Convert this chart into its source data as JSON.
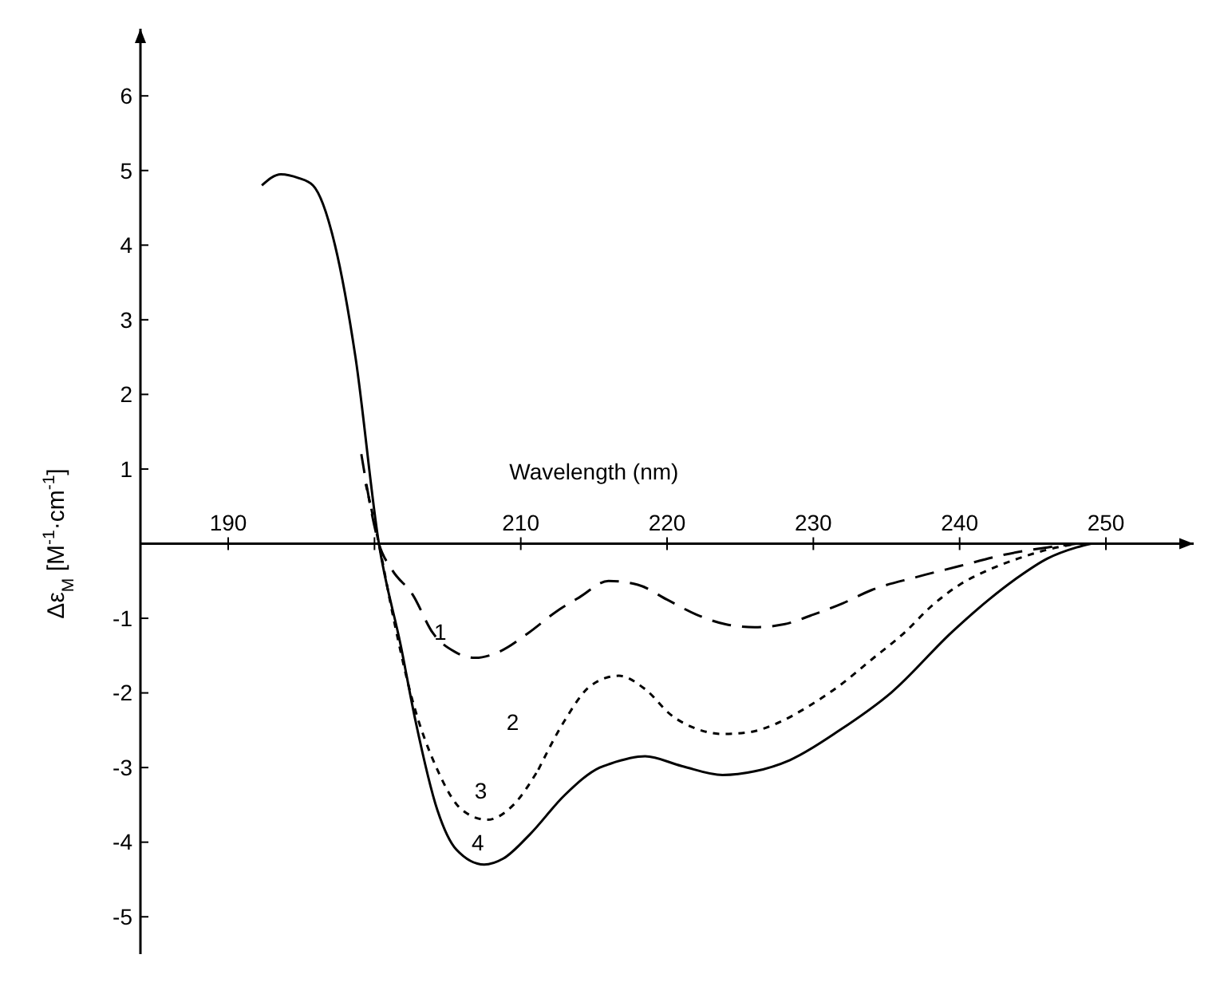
{
  "chart_data": {
    "type": "line",
    "xlabel": "Wavelength (nm)",
    "ylabel": "Δε$_{M}$ [M$^{-1}$·cm$^{-1}$]",
    "xlim": [
      184,
      256
    ],
    "ylim": [
      -5.5,
      6.9
    ],
    "xticks": [
      190,
      {
        "value": 200,
        "label": null
      },
      210,
      220,
      230,
      240,
      250
    ],
    "yticks": [
      -5,
      -4,
      -3,
      -2,
      -1,
      1,
      2,
      3,
      4,
      5,
      6
    ],
    "grid": false,
    "marker": "none",
    "series": [
      {
        "name": "1",
        "color": "#000000",
        "line_style": "dashed",
        "x": [
          199.1,
          200.3,
          201.2,
          202.6,
          204,
          205.5,
          206.9,
          208.5,
          210.5,
          212.5,
          214,
          216,
          218,
          220,
          222,
          224,
          226,
          228,
          230,
          232,
          234,
          237,
          240,
          243,
          246,
          248
        ],
        "values": [
          1.2,
          0,
          -0.35,
          -0.68,
          -1.2,
          -1.45,
          -1.53,
          -1.45,
          -1.2,
          -0.9,
          -0.72,
          -0.5,
          -0.55,
          -0.75,
          -0.95,
          -1.08,
          -1.12,
          -1.08,
          -0.95,
          -0.8,
          -0.62,
          -0.45,
          -0.3,
          -0.15,
          -0.05,
          0
        ]
      },
      {
        "name": "2",
        "color": "#000000",
        "line_style": "dotted",
        "x": [
          211.2,
          213,
          214.8,
          216.7,
          218.5,
          220.3,
          222,
          223.8,
          225.5,
          227.6,
          229.5,
          231.8,
          234,
          236.3,
          238,
          240,
          242,
          244,
          246,
          248
        ],
        "values": [
          -3.03,
          -2.37,
          -1.9,
          -1.77,
          -1.95,
          -2.3,
          -2.48,
          -2.55,
          -2.53,
          -2.4,
          -2.2,
          -1.9,
          -1.55,
          -1.18,
          -0.85,
          -0.55,
          -0.35,
          -0.2,
          -0.08,
          0
        ]
      },
      {
        "name": "3",
        "color": "#000000",
        "line_style": "dotted",
        "x": [
          199.4,
          200.3,
          201.3,
          202.5,
          204.3,
          206,
          207.7,
          209.5,
          211.2
        ],
        "values": [
          0.8,
          0,
          -1.0,
          -2.03,
          -3.03,
          -3.57,
          -3.7,
          -3.5,
          -3.03
        ]
      },
      {
        "name": "4",
        "color": "#000000",
        "line_style": "solid",
        "x": [
          192.3,
          193.6,
          194.8,
          195.8,
          197.3,
          198.7,
          200.3,
          201.8,
          202.8,
          204.3,
          205.6,
          207.5,
          208.8,
          210.6,
          213,
          215.4,
          216.1,
          218.5,
          221,
          223.8,
          226,
          228.4,
          231.8,
          235.3,
          239.5,
          242,
          244,
          246,
          248,
          249
        ],
        "values": [
          4.8,
          4.95,
          4.9,
          4.8,
          4.0,
          2.5,
          0,
          -1.37,
          -2.37,
          -3.57,
          -4.1,
          -4.3,
          -4.22,
          -3.9,
          -3.37,
          -3.0,
          -2.95,
          -2.85,
          -2.98,
          -3.1,
          -3.05,
          -2.9,
          -2.5,
          -2.0,
          -1.18,
          -0.75,
          -0.45,
          -0.2,
          -0.05,
          0
        ]
      }
    ]
  }
}
